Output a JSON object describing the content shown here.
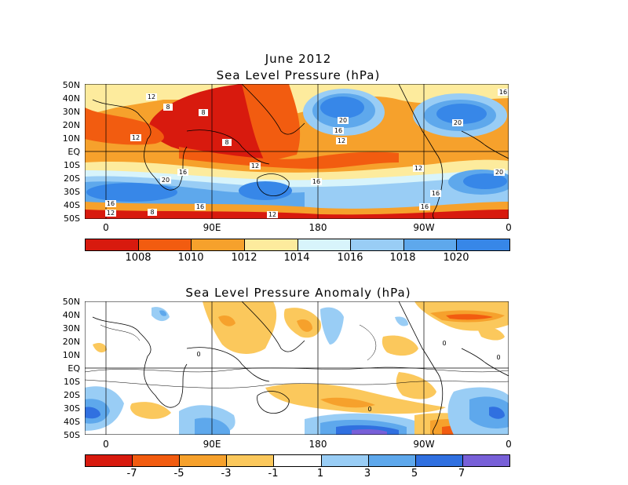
{
  "top_panel": {
    "title_line1": "June 2012",
    "title_line2": "Sea Level Pressure (hPa)",
    "lat_labels": [
      "50N",
      "40N",
      "30N",
      "20N",
      "10N",
      "EQ",
      "10S",
      "20S",
      "30S",
      "40S",
      "50S"
    ],
    "lon_labels": [
      "0",
      "90E",
      "180",
      "90W",
      "0"
    ],
    "contour_labels": [
      "12",
      "8",
      "8",
      "12",
      "8",
      "20",
      "16",
      "12",
      "12",
      "16",
      "20",
      "12",
      "16",
      "20",
      "16",
      "16",
      "20",
      "12",
      "8",
      "16",
      "12",
      "16",
      "16"
    ],
    "colorbar_labels": [
      "1008",
      "1010",
      "1012",
      "1014",
      "1016",
      "1018",
      "1020"
    ],
    "colorbar_colors": [
      "#d81a0e",
      "#f25c10",
      "#f6a12c",
      "#fdeb9d",
      "#d8f4fb",
      "#99cdf5",
      "#5ea8ec",
      "#3787e8"
    ]
  },
  "bottom_panel": {
    "title": "Sea Level Pressure Anomaly (hPa)",
    "lat_labels": [
      "50N",
      "40N",
      "30N",
      "20N",
      "10N",
      "EQ",
      "10S",
      "20S",
      "30S",
      "40S",
      "50S"
    ],
    "lon_labels": [
      "0",
      "90E",
      "180",
      "90W",
      "0"
    ],
    "contour_labels": [
      "0",
      "0",
      "0",
      "0"
    ],
    "colorbar_labels": [
      "-7",
      "-5",
      "-3",
      "-1",
      "1",
      "3",
      "5",
      "7"
    ],
    "colorbar_colors": [
      "#d81a0e",
      "#f25c10",
      "#f6a12c",
      "#fbc85c",
      "#ffffff",
      "#99cdf5",
      "#5ea8ec",
      "#3070e0",
      "#7860d8"
    ]
  }
}
